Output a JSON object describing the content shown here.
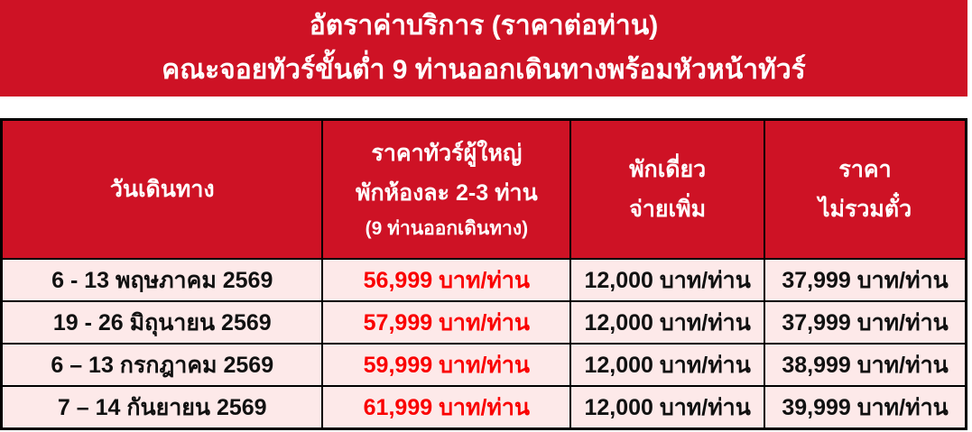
{
  "banner": {
    "line1": "อัตราค่าบริการ (ราคาต่อท่าน)",
    "line2": "คณะจอยทัวร์ขั้นต่ำ 9 ท่านออกเดินทางพร้อมหัวหน้าทัวร์"
  },
  "table": {
    "headers": {
      "departure_date": "วันเดินทาง",
      "adult_price_line1": "ราคาทัวร์ผู้ใหญ่",
      "adult_price_line2": "พักห้องละ 2-3 ท่าน",
      "adult_price_line3": "(9 ท่านออกเดินทาง)",
      "single_supplement_line1": "พักเดี่ยว",
      "single_supplement_line2": "จ่ายเพิ่ม",
      "no_ticket_line1": "ราคา",
      "no_ticket_line2": "ไม่รวมตั๋ว"
    },
    "rows": [
      {
        "date": "6 - 13 พฤษภาคม 2569",
        "adult_price": "56,999 บาท/ท่าน",
        "single_supplement": "12,000 บาท/ท่าน",
        "price_no_ticket": "37,999 บาท/ท่าน"
      },
      {
        "date": "19 - 26 มิถุนายน 2569",
        "adult_price": "57,999 บาท/ท่าน",
        "single_supplement": "12,000 บาท/ท่าน",
        "price_no_ticket": "37,999 บาท/ท่าน"
      },
      {
        "date": "6 – 13 กรกฎาคม 2569",
        "adult_price": "59,999 บาท/ท่าน",
        "single_supplement": "12,000 บาท/ท่าน",
        "price_no_ticket": "38,999 บาท/ท่าน"
      },
      {
        "date": "7 – 14 กันยายน 2569",
        "adult_price": "61,999 บาท/ท่าน",
        "single_supplement": "12,000 บาท/ท่าน",
        "price_no_ticket": "39,999 บาท/ท่าน"
      }
    ]
  },
  "colors": {
    "banner_red": "#CE1225",
    "row_pink": "#FDE9E9",
    "price_red": "#FA0000",
    "border_black": "#000000"
  }
}
